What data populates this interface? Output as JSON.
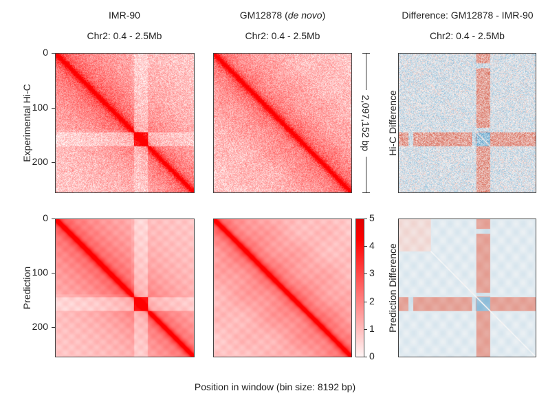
{
  "chart_data": {
    "type": "heatmap",
    "columns": [
      {
        "title": "IMR-90",
        "title_italic_part": "",
        "subtitle": "Chr2: 0.4 - 2.5Mb"
      },
      {
        "title": "GM12878 (",
        "title_italic_part": "de novo",
        "title_suffix": ")",
        "subtitle": "Chr2: 0.4 - 2.5Mb"
      },
      {
        "title": "Difference: GM12878 - IMR-90",
        "title_italic_part": "",
        "subtitle": "Chr2: 0.4 - 2.5Mb"
      }
    ],
    "rows": [
      {
        "label": "Experimental Hi-C",
        "diff_label": "Hi-C Difference"
      },
      {
        "label": "Prediction",
        "diff_label": "Prediction Difference"
      }
    ],
    "matrix_size_bins": 256,
    "y_ticks": [
      0,
      100,
      200
    ],
    "y_tick_labels": [
      "0",
      "100",
      "200"
    ],
    "xlabel": "Position in window (bin size: 8192 bp)",
    "scale_bar_label": "2,097,152 bp",
    "colorbar": {
      "range": [
        0,
        5
      ],
      "ticks": [
        0,
        1,
        2,
        3,
        4,
        5
      ],
      "tick_labels": [
        "0",
        "1",
        "2",
        "3",
        "4",
        "5"
      ],
      "colormap": "Reds (white to red)",
      "low_color": "#ffffff",
      "high_color": "#ff0000"
    },
    "diverging_colormap": {
      "negative": "#2b7bba",
      "neutral": "#f7f7f7",
      "positive": "#d6604d"
    },
    "features": {
      "imr90_boundary_band_bins": [
        145,
        170
      ],
      "imr90_vertical_band_bins": [
        145,
        170
      ],
      "imr90_vertical_band_top_bins": [
        10,
        140
      ],
      "imr90_horizontal_band_left_bins": [
        10,
        140
      ],
      "diff_positive_stripe_bins": [
        145,
        170
      ],
      "diff_negative_center_bins": [
        140,
        175
      ]
    },
    "panels": [
      {
        "row": 0,
        "col": 0,
        "name": "IMR-90 experimental Hi-C",
        "map": "reds"
      },
      {
        "row": 0,
        "col": 1,
        "name": "GM12878 experimental Hi-C",
        "map": "reds"
      },
      {
        "row": 0,
        "col": 2,
        "name": "Hi-C difference",
        "map": "diverging"
      },
      {
        "row": 1,
        "col": 0,
        "name": "IMR-90 prediction",
        "map": "reds"
      },
      {
        "row": 1,
        "col": 1,
        "name": "GM12878 prediction",
        "map": "reds"
      },
      {
        "row": 1,
        "col": 2,
        "name": "Prediction difference",
        "map": "diverging"
      }
    ]
  }
}
